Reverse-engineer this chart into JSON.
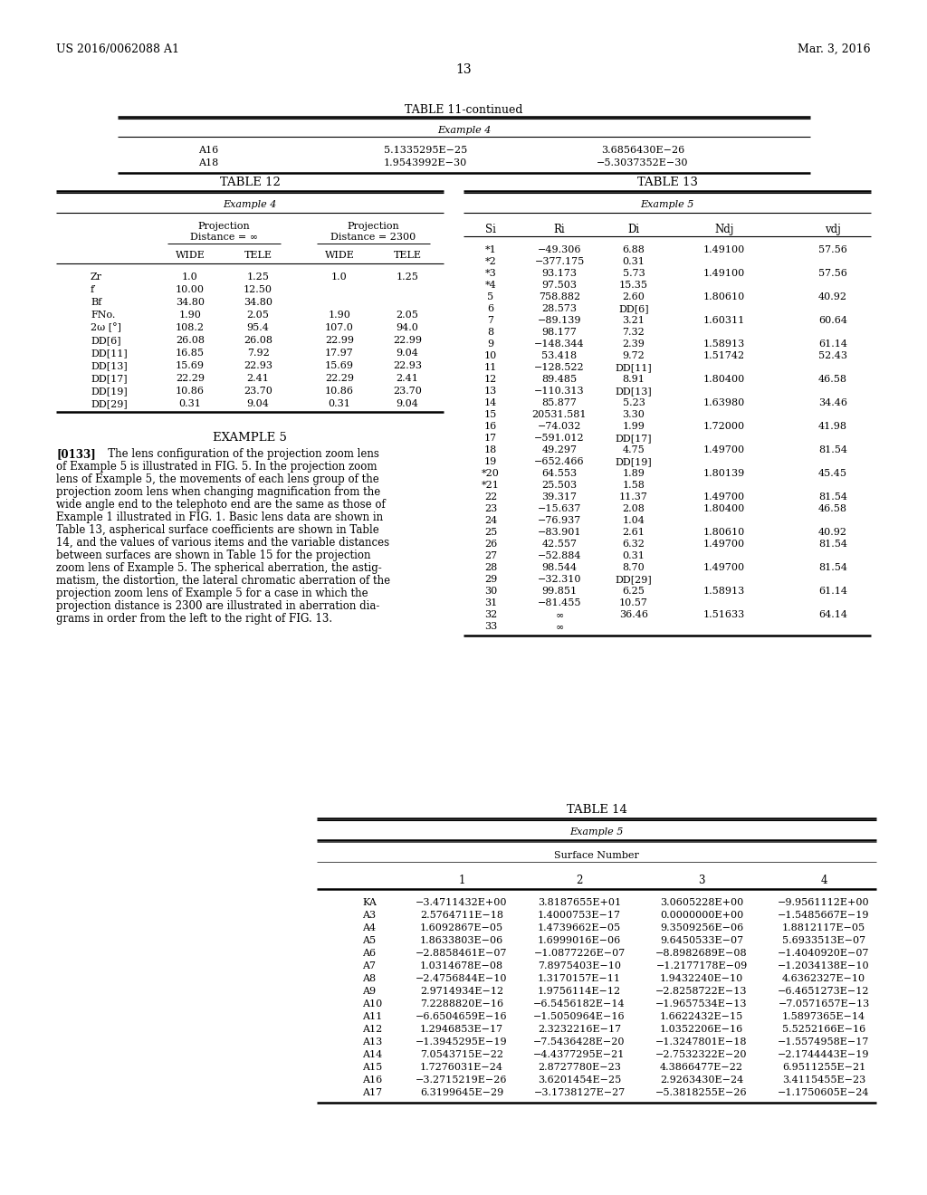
{
  "header_left": "US 2016/0062088 A1",
  "header_right": "Mar. 3, 2016",
  "page_number": "13",
  "background_color": "#ffffff",
  "table11_title": "TABLE 11-continued",
  "table11_sub": "Example 4",
  "table11_rows": [
    [
      "A16",
      "5.1335295E−25",
      "3.6856430E−26"
    ],
    [
      "A18",
      "1.9543992E−30",
      "−5.3037352E−30"
    ]
  ],
  "table12_title": "TABLE 12",
  "table12_sub": "Example 4",
  "table12_rows": [
    [
      "Zr",
      "1.0",
      "1.25",
      "1.0",
      "1.25"
    ],
    [
      "f′",
      "10.00",
      "12.50",
      "",
      ""
    ],
    [
      "Bf",
      "34.80",
      "34.80",
      "",
      ""
    ],
    [
      "FNo.",
      "1.90",
      "2.05",
      "1.90",
      "2.05"
    ],
    [
      "2ω [°]",
      "108.2",
      "95.4",
      "107.0",
      "94.0"
    ],
    [
      "DD[6]",
      "26.08",
      "26.08",
      "22.99",
      "22.99"
    ],
    [
      "DD[11]",
      "16.85",
      "7.92",
      "17.97",
      "9.04"
    ],
    [
      "DD[13]",
      "15.69",
      "22.93",
      "15.69",
      "22.93"
    ],
    [
      "DD[17]",
      "22.29",
      "2.41",
      "22.29",
      "2.41"
    ],
    [
      "DD[19]",
      "10.86",
      "23.70",
      "10.86",
      "23.70"
    ],
    [
      "DD[29]",
      "0.31",
      "9.04",
      "0.31",
      "9.04"
    ]
  ],
  "table13_title": "TABLE 13",
  "table13_sub": "Example 5",
  "table13_col_headers": [
    "Si",
    "Ri",
    "Di",
    "Ndj",
    "vdj"
  ],
  "table13_rows": [
    [
      "*1",
      "−49.306",
      "6.88",
      "1.49100",
      "57.56"
    ],
    [
      "*2",
      "−377.175",
      "0.31",
      "",
      ""
    ],
    [
      "*3",
      "93.173",
      "5.73",
      "1.49100",
      "57.56"
    ],
    [
      "*4",
      "97.503",
      "15.35",
      "",
      ""
    ],
    [
      "5",
      "758.882",
      "2.60",
      "1.80610",
      "40.92"
    ],
    [
      "6",
      "28.573",
      "DD[6]",
      "",
      ""
    ],
    [
      "7",
      "−89.139",
      "3.21",
      "1.60311",
      "60.64"
    ],
    [
      "8",
      "98.177",
      "7.32",
      "",
      ""
    ],
    [
      "9",
      "−148.344",
      "2.39",
      "1.58913",
      "61.14"
    ],
    [
      "10",
      "53.418",
      "9.72",
      "1.51742",
      "52.43"
    ],
    [
      "11",
      "−128.522",
      "DD[11]",
      "",
      ""
    ],
    [
      "12",
      "89.485",
      "8.91",
      "1.80400",
      "46.58"
    ],
    [
      "13",
      "−110.313",
      "DD[13]",
      "",
      ""
    ],
    [
      "14",
      "85.877",
      "5.23",
      "1.63980",
      "34.46"
    ],
    [
      "15",
      "20531.581",
      "3.30",
      "",
      ""
    ],
    [
      "16",
      "−74.032",
      "1.99",
      "1.72000",
      "41.98"
    ],
    [
      "17",
      "−591.012",
      "DD[17]",
      "",
      ""
    ],
    [
      "18",
      "49.297",
      "4.75",
      "1.49700",
      "81.54"
    ],
    [
      "19",
      "−652.466",
      "DD[19]",
      "",
      ""
    ],
    [
      "*20",
      "64.553",
      "1.89",
      "1.80139",
      "45.45"
    ],
    [
      "*21",
      "25.503",
      "1.58",
      "",
      ""
    ],
    [
      "22",
      "39.317",
      "11.37",
      "1.49700",
      "81.54"
    ],
    [
      "23",
      "−15.637",
      "2.08",
      "1.80400",
      "46.58"
    ],
    [
      "24",
      "−76.937",
      "1.04",
      "",
      ""
    ],
    [
      "25",
      "−83.901",
      "2.61",
      "1.80610",
      "40.92"
    ],
    [
      "26",
      "42.557",
      "6.32",
      "1.49700",
      "81.54"
    ],
    [
      "27",
      "−52.884",
      "0.31",
      "",
      ""
    ],
    [
      "28",
      "98.544",
      "8.70",
      "1.49700",
      "81.54"
    ],
    [
      "29",
      "−32.310",
      "DD[29]",
      "",
      ""
    ],
    [
      "30",
      "99.851",
      "6.25",
      "1.58913",
      "61.14"
    ],
    [
      "31",
      "−81.455",
      "10.57",
      "",
      ""
    ],
    [
      "32",
      "∞",
      "36.46",
      "1.51633",
      "64.14"
    ],
    [
      "33",
      "∞",
      "",
      "",
      ""
    ]
  ],
  "example5_title": "EXAMPLE 5",
  "example5_para": "[0133]    The lens configuration of the projection zoom lens of Example 5 is illustrated in FIG. 5. In the projection zoom lens of Example 5, the movements of each lens group of the projection zoom lens when changing magnification from the wide angle end to the telephoto end are the same as those of Example 1 illustrated in FIG. 1. Basic lens data are shown in Table 13, aspherical surface coefficients are shown in Table 14, and the values of various items and the variable distances between surfaces are shown in Table 15 for the projection zoom lens of Example 5. The spherical aberration, the astigmatism, the distortion, the lateral chromatic aberration of the projection zoom lens of Example 5 for a case in which the projection distance is 2300 are illustrated in aberration diagrams in order from the left to the right of FIG. 13.",
  "table14_title": "TABLE 14",
  "table14_sub": "Example 5",
  "table14_sub2": "Surface Number",
  "table14_rows": [
    [
      "KA",
      "−3.4711432E+00",
      "3.8187655E+01",
      "3.0605228E+00",
      "−9.9561112E+00"
    ],
    [
      "A3",
      "2.5764711E−18",
      "1.4000753E−17",
      "0.0000000E+00",
      "−1.5485667E−19"
    ],
    [
      "A4",
      "1.6092867E−05",
      "1.4739662E−05",
      "9.3509256E−06",
      "1.8812117E−05"
    ],
    [
      "A5",
      "1.8633803E−06",
      "1.6999016E−06",
      "9.6450533E−07",
      "5.6933513E−07"
    ],
    [
      "A6",
      "−2.8858461E−07",
      "−1.0877226E−07",
      "−8.8982689E−08",
      "−1.4040920E−07"
    ],
    [
      "A7",
      "1.0314678E−08",
      "7.8975403E−10",
      "−1.2177178E−09",
      "−1.2034138E−10"
    ],
    [
      "A8",
      "−2.4756844E−10",
      "1.3170157E−11",
      "1.9432240E−10",
      "4.6362327E−10"
    ],
    [
      "A9",
      "2.9714934E−12",
      "1.9756114E−12",
      "−2.8258722E−13",
      "−6.4651273E−12"
    ],
    [
      "A10",
      "7.2288820E−16",
      "−6.5456182E−14",
      "−1.9657534E−13",
      "−7.0571657E−13"
    ],
    [
      "A11",
      "−6.6504659E−16",
      "−1.5050964E−16",
      "1.6622432E−15",
      "1.5897365E−14"
    ],
    [
      "A12",
      "1.2946853E−17",
      "2.3232216E−17",
      "1.0352206E−16",
      "5.5252166E−16"
    ],
    [
      "A13",
      "−1.3945295E−19",
      "−7.5436428E−20",
      "−1.3247801E−18",
      "−1.5574958E−17"
    ],
    [
      "A14",
      "7.0543715E−22",
      "−4.4377295E−21",
      "−2.7532322E−20",
      "−2.1744443E−19"
    ],
    [
      "A15",
      "1.7276031E−24",
      "2.8727780E−23",
      "4.3866477E−22",
      "6.9511255E−21"
    ],
    [
      "A16",
      "−3.2715219E−26",
      "3.6201454E−25",
      "2.9263430E−24",
      "3.4115455E−23"
    ],
    [
      "A17",
      "6.3199645E−29",
      "−3.1738127E−27",
      "−5.3818255E−26",
      "−1.1750605E−24"
    ]
  ]
}
